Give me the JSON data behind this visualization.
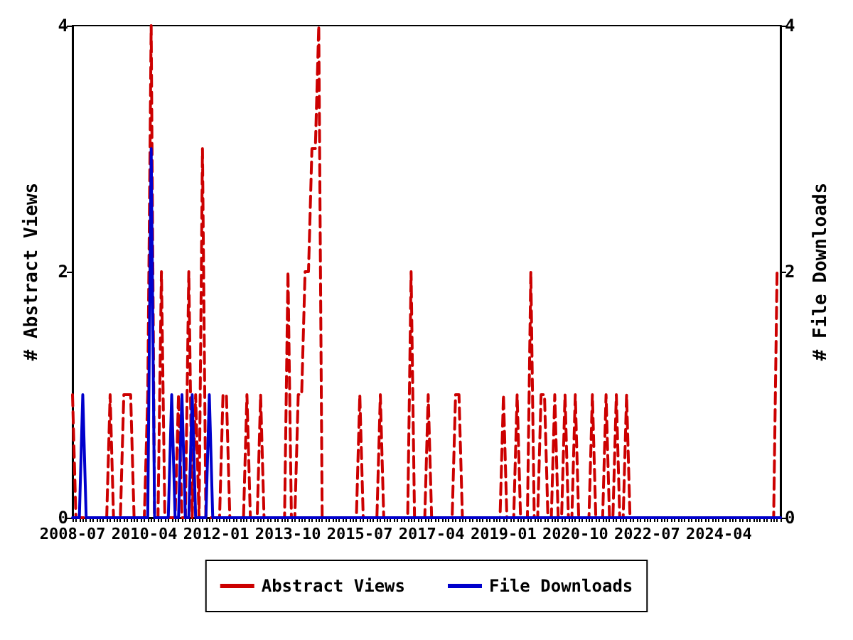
{
  "chart_data": {
    "type": "line",
    "ylabel": "# Abstract Views",
    "y2label": "# File Downloads",
    "categories": [
      "2008-07",
      null,
      null,
      null,
      null,
      null,
      null,
      null,
      null,
      null,
      null,
      null,
      null,
      null,
      null,
      null,
      null,
      null,
      null,
      null,
      null,
      "2010-04",
      null,
      null,
      null,
      null,
      null,
      null,
      null,
      null,
      null,
      null,
      null,
      null,
      null,
      null,
      null,
      null,
      null,
      null,
      null,
      null,
      "2012-01",
      null,
      null,
      null,
      null,
      null,
      null,
      null,
      null,
      null,
      null,
      null,
      null,
      null,
      null,
      null,
      null,
      null,
      null,
      null,
      null,
      "2013-10",
      null,
      null,
      null,
      null,
      null,
      null,
      null,
      null,
      null,
      null,
      null,
      null,
      null,
      null,
      null,
      null,
      null,
      null,
      null,
      null,
      "2015-07",
      null,
      null,
      null,
      null,
      null,
      null,
      null,
      null,
      null,
      null,
      null,
      null,
      null,
      null,
      null,
      null,
      null,
      null,
      null,
      null,
      "2017-04",
      null,
      null,
      null,
      null,
      null,
      null,
      null,
      null,
      null,
      null,
      null,
      null,
      null,
      null,
      null,
      null,
      null,
      null,
      null,
      null,
      "2019-01",
      null,
      null,
      null,
      null,
      null,
      null,
      null,
      null,
      null,
      null,
      null,
      null,
      null,
      null,
      null,
      null,
      null,
      null,
      null,
      null,
      "2020-10",
      null,
      null,
      null,
      null,
      null,
      null,
      null,
      null,
      null,
      null,
      null,
      null,
      null,
      null,
      null,
      null,
      null,
      null,
      null,
      null,
      "2022-07",
      null,
      null,
      null,
      null,
      null,
      null,
      null,
      null,
      null,
      null,
      null,
      null,
      null,
      null,
      null,
      null,
      null,
      null,
      null,
      null,
      "2024-04",
      null,
      null,
      null,
      null,
      null,
      null,
      null,
      null,
      null,
      null,
      null,
      null,
      null,
      null,
      null,
      null,
      null,
      null
    ],
    "series": [
      {
        "name": "Abstract Views",
        "color": "#cc0000",
        "line_style": "dashed",
        "values": [
          1,
          0,
          0,
          0,
          0,
          0,
          0,
          0,
          0,
          0,
          0,
          1,
          0,
          0,
          0,
          1,
          1,
          1,
          0,
          0,
          0,
          0,
          1,
          4,
          0,
          0,
          2,
          0,
          0,
          0,
          0,
          1,
          0,
          0,
          2,
          0,
          1,
          0,
          3,
          0,
          0,
          0,
          0,
          0,
          1,
          1,
          0,
          0,
          0,
          0,
          0,
          1,
          0,
          0,
          0,
          1,
          0,
          0,
          0,
          0,
          0,
          0,
          0,
          2,
          0,
          0,
          1,
          1,
          2,
          2,
          3,
          3,
          4,
          0,
          0,
          0,
          0,
          0,
          0,
          0,
          0,
          0,
          0,
          0,
          1,
          0,
          0,
          0,
          0,
          0,
          1,
          0,
          0,
          0,
          0,
          0,
          0,
          0,
          0,
          2,
          0,
          0,
          0,
          0,
          1,
          0,
          0,
          0,
          0,
          0,
          0,
          0,
          1,
          1,
          0,
          0,
          0,
          0,
          0,
          0,
          0,
          0,
          0,
          0,
          0,
          0,
          1,
          0,
          0,
          0,
          1,
          0,
          0,
          0,
          2,
          0,
          0,
          1,
          1,
          0,
          0,
          1,
          0,
          0,
          1,
          0,
          0,
          1,
          0,
          0,
          0,
          0,
          1,
          0,
          0,
          0,
          1,
          0,
          0,
          1,
          0,
          0,
          1,
          0,
          0,
          0,
          0,
          0,
          0,
          0,
          0,
          0,
          0,
          0,
          0,
          0,
          0,
          0,
          0,
          0,
          0,
          0,
          0,
          0,
          0,
          0,
          0,
          0,
          0,
          0,
          0,
          0,
          0,
          0,
          0,
          0,
          0,
          0,
          0,
          0,
          0,
          0,
          0,
          0,
          0,
          0,
          2,
          2
        ]
      },
      {
        "name": "File Downloads",
        "color": "#0000cc",
        "line_style": "solid",
        "axis": "y2",
        "values": [
          0,
          0,
          0,
          1,
          0,
          0,
          0,
          0,
          0,
          0,
          0,
          0,
          0,
          0,
          0,
          0,
          0,
          0,
          0,
          0,
          0,
          0,
          0,
          3,
          0,
          0,
          0,
          0,
          0,
          1,
          0,
          0,
          1,
          0,
          0,
          1,
          0,
          0,
          0,
          0,
          1,
          0,
          0,
          0,
          0,
          0,
          0,
          0,
          0,
          0,
          0,
          0,
          0,
          0,
          0,
          0,
          0,
          0,
          0,
          0,
          0,
          0,
          0,
          0,
          0,
          0,
          0,
          0,
          0,
          0,
          0,
          0,
          0,
          0,
          0,
          0,
          0,
          0,
          0,
          0,
          0,
          0,
          0,
          0,
          0,
          0,
          0,
          0,
          0,
          0,
          0,
          0,
          0,
          0,
          0,
          0,
          0,
          0,
          0,
          0,
          0,
          0,
          0,
          0,
          0,
          0,
          0,
          0,
          0,
          0,
          0,
          0,
          0,
          0,
          0,
          0,
          0,
          0,
          0,
          0,
          0,
          0,
          0,
          0,
          0,
          0,
          0,
          0,
          0,
          0,
          0,
          0,
          0,
          0,
          0,
          0,
          0,
          0,
          0,
          0,
          0,
          0,
          0,
          0,
          0,
          0,
          0,
          0,
          0,
          0,
          0,
          0,
          0,
          0,
          0,
          0,
          0,
          0,
          0,
          0,
          0,
          0,
          0,
          0,
          0,
          0,
          0,
          0,
          0,
          0,
          0,
          0,
          0,
          0,
          0,
          0,
          0,
          0,
          0,
          0,
          0,
          0,
          0,
          0,
          0,
          0,
          0,
          0,
          0,
          0,
          0,
          0,
          0,
          0,
          0,
          0,
          0,
          0,
          0,
          0,
          0,
          0,
          0,
          0,
          0,
          0,
          0,
          0
        ]
      }
    ],
    "ylim": [
      0,
      4
    ],
    "yticks": [
      0,
      2,
      4
    ],
    "y2lim": [
      0,
      4
    ],
    "y2ticks": [
      0,
      2,
      4
    ],
    "grid": false,
    "legend": "bottom",
    "marker": "none"
  }
}
